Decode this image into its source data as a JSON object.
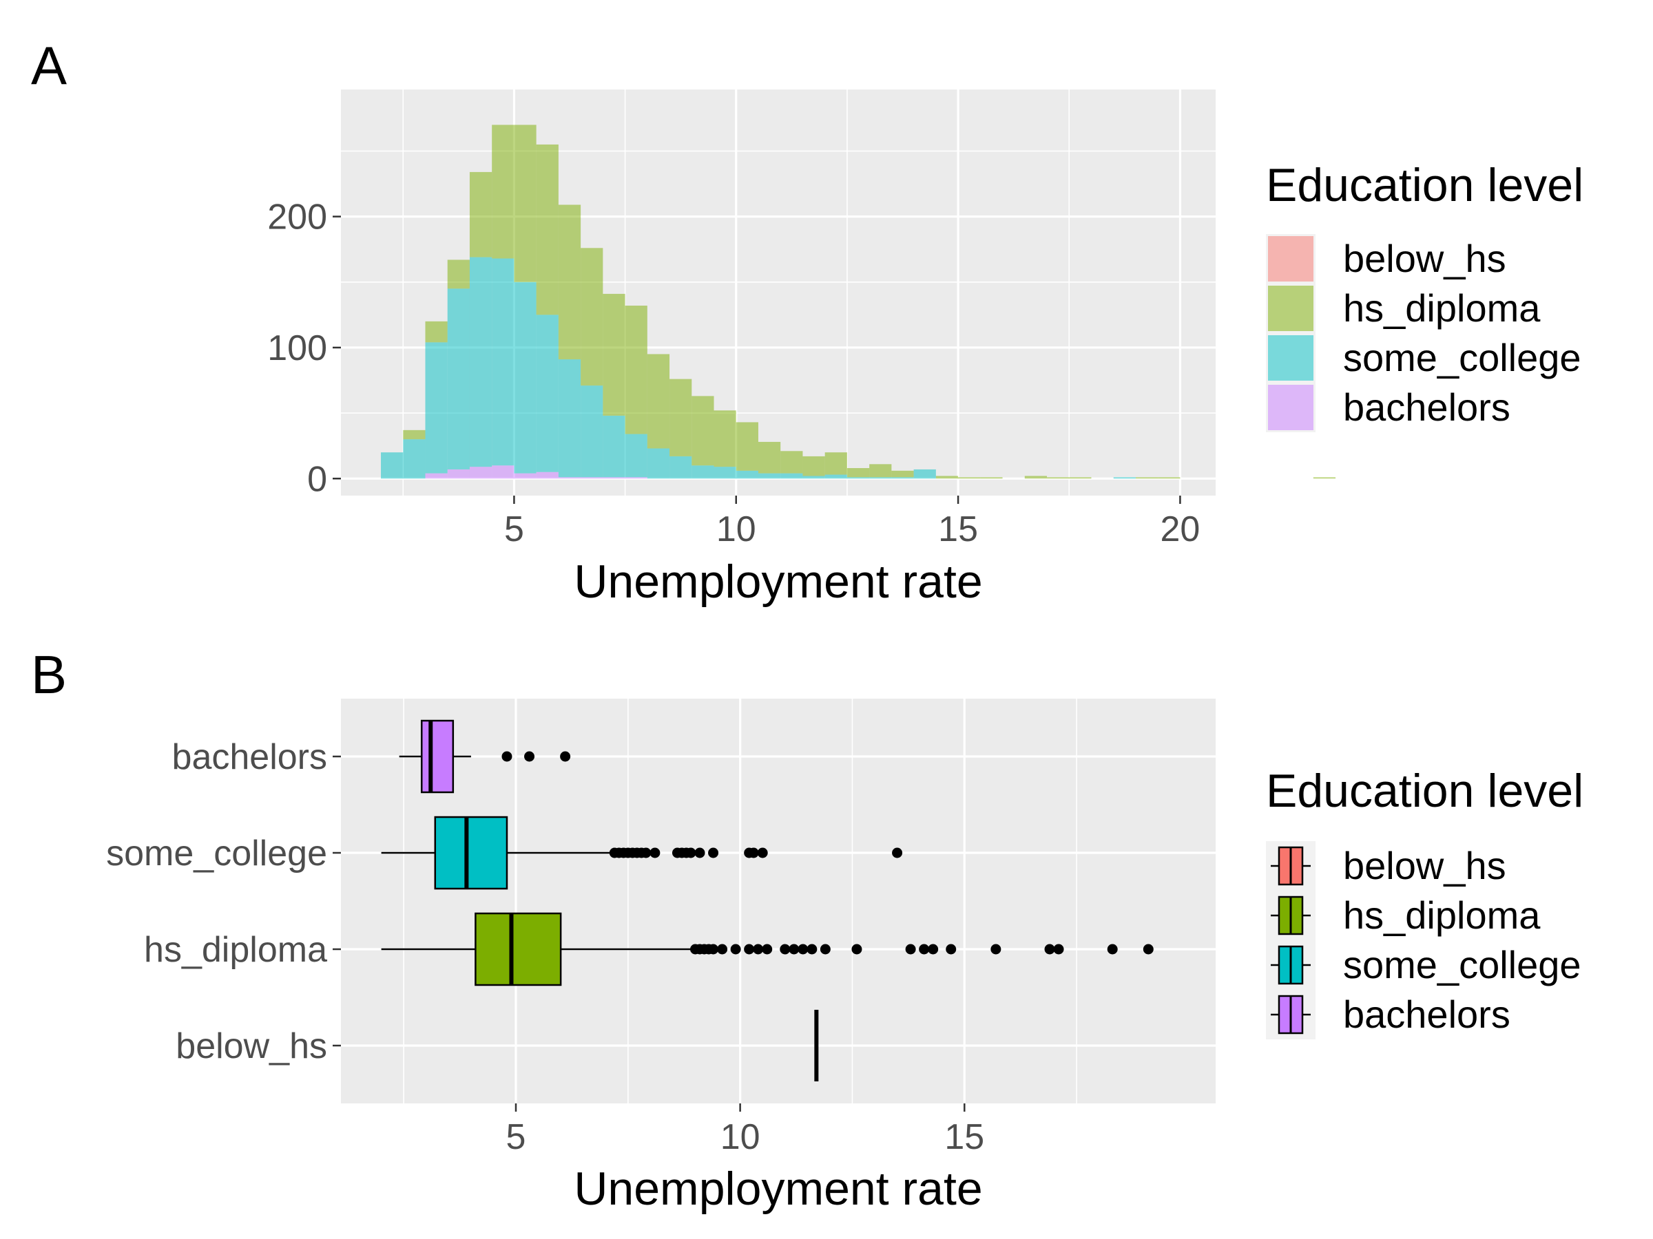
{
  "figure": {
    "panels": [
      "A",
      "B"
    ],
    "colors": {
      "panel_background": "#EBEBEB",
      "grid_major": "#FFFFFF",
      "below_hs": "#F8766D",
      "hs_diploma": "#7CAE00",
      "some_college": "#00BFC4",
      "bachelors": "#C77CFF"
    }
  },
  "chart_data": [
    {
      "panel": "A",
      "type": "histogram",
      "stacked": true,
      "alpha": 0.5,
      "xlabel": "Unemployment rate",
      "ylabel": "",
      "xlim": [
        1.1,
        20.8
      ],
      "ylim": [
        -13,
        297
      ],
      "xticks": [
        5,
        10,
        15,
        20
      ],
      "yticks": [
        0,
        100,
        200
      ],
      "grid": true,
      "legend": {
        "title": "Education level",
        "position": "right",
        "entries": [
          "below_hs",
          "hs_diploma",
          "some_college",
          "bachelors"
        ]
      },
      "bin_width": 0.5,
      "bins_from": 2.0,
      "series": [
        {
          "name": "bachelors",
          "values": [
            0,
            0,
            4,
            7,
            9,
            10,
            4,
            5,
            1,
            1,
            1,
            1,
            0,
            0,
            0,
            0,
            0,
            0,
            0,
            0,
            0,
            0,
            0,
            0,
            0,
            0,
            0,
            0,
            0,
            0,
            0,
            0,
            0,
            0,
            0,
            0,
            0,
            0,
            0,
            0,
            0,
            0,
            0,
            0,
            0,
            0,
            0,
            0,
            0,
            0,
            0,
            0,
            0,
            0,
            0
          ]
        },
        {
          "name": "some_college",
          "values": [
            20,
            30,
            100,
            138,
            160,
            158,
            146,
            120,
            90,
            70,
            47,
            33,
            23,
            17,
            10,
            9,
            6,
            4,
            4,
            2,
            3,
            1,
            1,
            1,
            7,
            0,
            0,
            0,
            0,
            0,
            0,
            0,
            0,
            1,
            0,
            0,
            0,
            0,
            0,
            0,
            0,
            0,
            0,
            0,
            0,
            0,
            0,
            0,
            0,
            0,
            0,
            0,
            0,
            0,
            0
          ]
        },
        {
          "name": "hs_diploma",
          "values": [
            0,
            7,
            16,
            22,
            65,
            102,
            120,
            130,
            118,
            105,
            93,
            98,
            72,
            59,
            53,
            43,
            37,
            24,
            17,
            15,
            17,
            7,
            10,
            5,
            0,
            2,
            1,
            1,
            0,
            2,
            1,
            1,
            0,
            0,
            1,
            1,
            0,
            0,
            0,
            0,
            0,
            0,
            1,
            0,
            0,
            0,
            0,
            0,
            0,
            0,
            0,
            0,
            0,
            0,
            0
          ]
        },
        {
          "name": "below_hs",
          "values": [
            0,
            0,
            0,
            0,
            0,
            0,
            0,
            0,
            0,
            0,
            0,
            0,
            0,
            0,
            0,
            0,
            0,
            0,
            0,
            0,
            0,
            0,
            0,
            0,
            0,
            0,
            0,
            0,
            0,
            0,
            0,
            0,
            0,
            0,
            0,
            0,
            0,
            0,
            0,
            0,
            0,
            0,
            0,
            0,
            0,
            0,
            0,
            0,
            0,
            0,
            0,
            0,
            0,
            0,
            0
          ]
        }
      ]
    },
    {
      "panel": "B",
      "type": "boxplot",
      "xlabel": "Unemployment rate",
      "ylabel": "",
      "xlim": [
        1.1,
        20.6
      ],
      "xticks": [
        5,
        10,
        15
      ],
      "categories": [
        "below_hs",
        "hs_diploma",
        "some_college",
        "bachelors"
      ],
      "grid": true,
      "legend": {
        "title": "Education level",
        "position": "right",
        "entries": [
          "below_hs",
          "hs_diploma",
          "some_college",
          "bachelors"
        ]
      },
      "series": [
        {
          "name": "below_hs",
          "min": 11.7,
          "q1": 11.7,
          "median": 11.7,
          "q3": 11.7,
          "max": 11.7,
          "outliers": []
        },
        {
          "name": "hs_diploma",
          "min": 2.0,
          "q1": 4.1,
          "median": 4.9,
          "q3": 6.0,
          "max": 8.9,
          "outliers": [
            9.0,
            9.1,
            9.2,
            9.3,
            9.4,
            9.6,
            9.9,
            10.2,
            10.4,
            10.6,
            11.0,
            11.2,
            11.4,
            11.6,
            11.9,
            12.6,
            13.8,
            14.1,
            14.3,
            14.7,
            15.7,
            16.9,
            17.1,
            18.3,
            19.1
          ]
        },
        {
          "name": "some_college",
          "min": 2.0,
          "q1": 3.2,
          "median": 3.9,
          "q3": 4.8,
          "max": 7.1,
          "outliers": [
            7.2,
            7.3,
            7.4,
            7.5,
            7.6,
            7.7,
            7.8,
            7.9,
            8.1,
            8.6,
            8.7,
            8.8,
            8.9,
            9.1,
            9.4,
            10.2,
            10.3,
            10.5,
            13.5
          ]
        },
        {
          "name": "bachelors",
          "min": 2.4,
          "q1": 2.9,
          "median": 3.1,
          "q3": 3.6,
          "max": 4.0,
          "outliers": [
            4.8,
            5.3,
            6.1
          ]
        }
      ]
    }
  ]
}
